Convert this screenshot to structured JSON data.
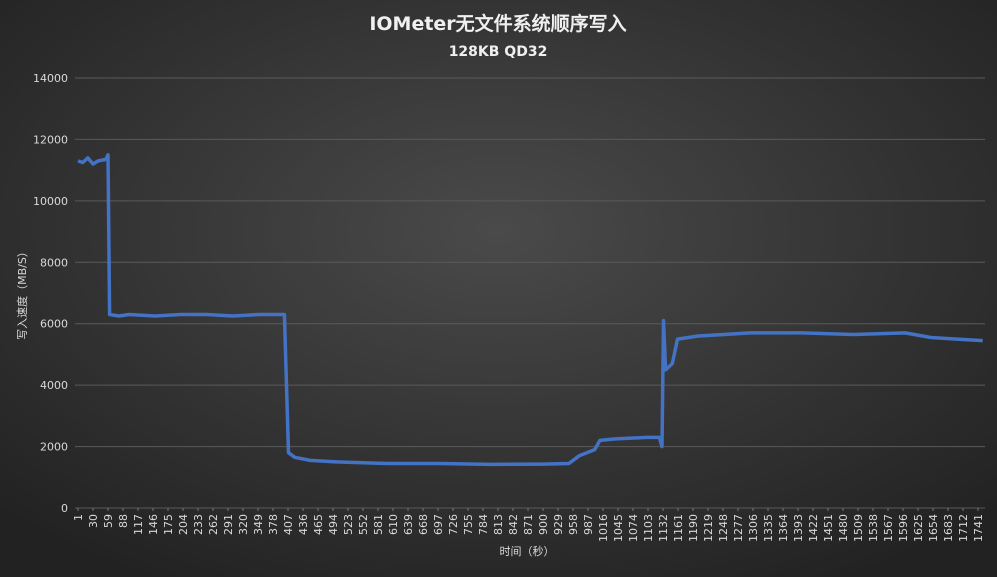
{
  "chart_data": {
    "type": "line",
    "title": "IOMeter无文件系统顺序写入",
    "subtitle": "128KB QD32",
    "y_label": "写入速度（MB/S）",
    "x_label": "时间（秒）",
    "xlim": [
      1,
      1755
    ],
    "xticks": [
      1,
      30,
      59,
      88,
      117,
      146,
      175,
      204,
      233,
      262,
      291,
      320,
      349,
      378,
      407,
      436,
      465,
      494,
      523,
      552,
      581,
      610,
      639,
      668,
      697,
      726,
      755,
      784,
      813,
      842,
      871,
      900,
      929,
      958,
      987,
      1016,
      1045,
      1074,
      1103,
      1132,
      1161,
      1190,
      1219,
      1248,
      1277,
      1306,
      1335,
      1364,
      1393,
      1422,
      1451,
      1480,
      1509,
      1538,
      1567,
      1596,
      1625,
      1654,
      1683,
      1712,
      1741
    ],
    "ylim": [
      0,
      14000
    ],
    "yticks": [
      0,
      2000,
      4000,
      6000,
      8000,
      10000,
      12000,
      14000
    ],
    "grid": true,
    "series": [
      {
        "name": "写入速度",
        "color": "#4472c4",
        "x": [
          1,
          10,
          20,
          30,
          40,
          55,
          59,
          62,
          80,
          100,
          150,
          200,
          250,
          300,
          350,
          400,
          408,
          420,
          450,
          500,
          600,
          700,
          800,
          900,
          950,
          970,
          1000,
          1010,
          1040,
          1100,
          1125,
          1130,
          1133,
          1137,
          1150,
          1160,
          1200,
          1250,
          1300,
          1400,
          1500,
          1600,
          1650,
          1700,
          1750
        ],
        "values": [
          11300,
          11250,
          11400,
          11200,
          11300,
          11350,
          11500,
          6300,
          6250,
          6300,
          6250,
          6300,
          6300,
          6250,
          6300,
          6300,
          1800,
          1650,
          1550,
          1500,
          1450,
          1450,
          1420,
          1430,
          1450,
          1700,
          1900,
          2200,
          2250,
          2300,
          2300,
          2000,
          6100,
          4500,
          4700,
          5500,
          5600,
          5650,
          5700,
          5700,
          5650,
          5700,
          5550,
          5500,
          5450
        ]
      }
    ]
  }
}
